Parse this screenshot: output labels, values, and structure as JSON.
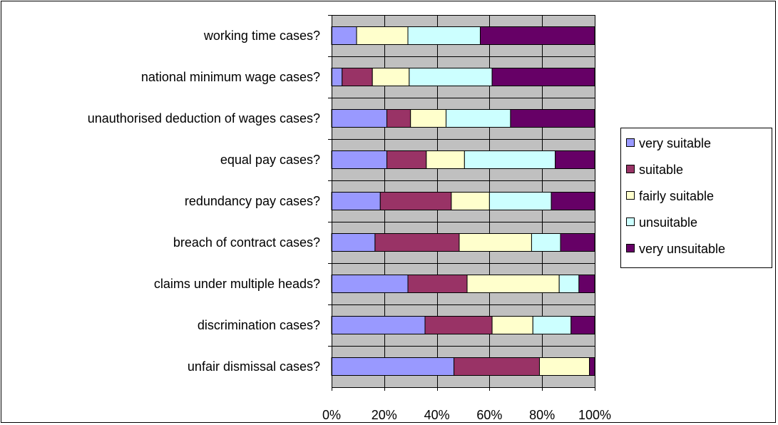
{
  "chart_data": {
    "type": "bar",
    "orientation": "horizontal",
    "stacked": "percent",
    "categories": [
      "working time cases?",
      "national minimum wage cases?",
      "unauthorised deduction of wages cases?",
      "equal pay cases?",
      "redundancy pay cases?",
      "breach of contract cases?",
      "claims under multiple heads?",
      "discrimination cases?",
      "unfair dismissal cases?"
    ],
    "series": [
      {
        "name": "very suitable",
        "color": "#9999ff",
        "values": [
          9.5,
          4,
          21,
          21,
          18.5,
          16.5,
          29,
          35.5,
          46.5
        ]
      },
      {
        "name": "suitable",
        "color": "#993366",
        "values": [
          0,
          11.5,
          9,
          15,
          27,
          32,
          22.5,
          25.5,
          32.5
        ]
      },
      {
        "name": "fairly suitable",
        "color": "#ffffcc",
        "values": [
          19.5,
          14,
          13.5,
          14.5,
          14.5,
          27.5,
          35,
          15.5,
          19
        ]
      },
      {
        "name": "unsuitable",
        "color": "#ccffff",
        "values": [
          27.5,
          31.5,
          24.5,
          34.5,
          23.5,
          11,
          7.5,
          14.5,
          0
        ]
      },
      {
        "name": "very unsuitable",
        "color": "#660066",
        "values": [
          43.5,
          39,
          32,
          15,
          16.5,
          13,
          6,
          9,
          2
        ]
      }
    ],
    "xlim": [
      0,
      100
    ],
    "ticks": [
      "0%",
      "20%",
      "40%",
      "60%",
      "80%",
      "100%"
    ],
    "plot_background": "#c0c0c0",
    "grid": true,
    "legend": "right",
    "title": "",
    "xlabel": "",
    "ylabel": ""
  }
}
